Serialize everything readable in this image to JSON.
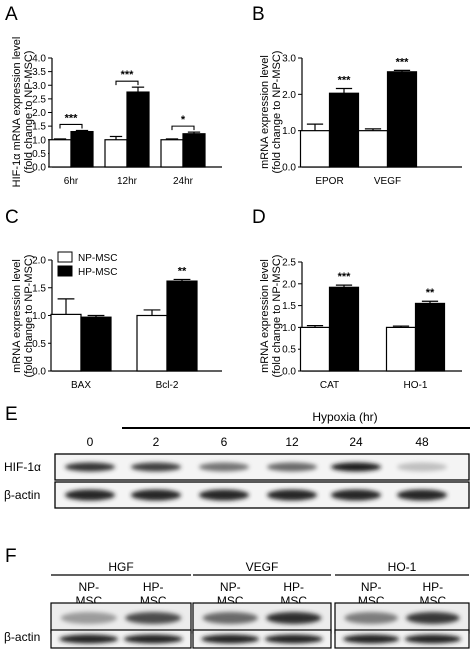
{
  "chart_data": [
    {
      "id": "A",
      "letter": "A",
      "type": "bar",
      "categories": [
        "6hr",
        "12hr",
        "24hr"
      ],
      "series": [
        {
          "name": "NP-MSC",
          "values": [
            1.0,
            1.0,
            1.0
          ],
          "errors": [
            0.03,
            0.12,
            0.03
          ],
          "color": "#ffffff"
        },
        {
          "name": "HP-MSC",
          "values": [
            1.3,
            2.75,
            1.22
          ],
          "errors": [
            0.04,
            0.18,
            0.06
          ],
          "color": "#000000"
        }
      ],
      "significance": [
        "***",
        "***",
        "*"
      ],
      "ylabel_lines": [
        "HIF-1α mRNA expression level",
        "(fold change to NP-MSC)"
      ],
      "ylim": [
        0,
        4.0
      ],
      "yticks": [
        "0.0",
        "0.5",
        "1.0",
        "1.5",
        "2.0",
        "2.5",
        "3.0",
        "3.5",
        "4.0"
      ],
      "brackets": true
    },
    {
      "id": "B",
      "letter": "B",
      "type": "bar",
      "categories": [
        "EPOR",
        "VEGF"
      ],
      "series": [
        {
          "name": "NP-MSC",
          "values": [
            1.0,
            1.0
          ],
          "errors": [
            0.18,
            0.05
          ],
          "color": "#ffffff"
        },
        {
          "name": "HP-MSC",
          "values": [
            2.03,
            2.62
          ],
          "errors": [
            0.13,
            0.04
          ],
          "color": "#000000"
        }
      ],
      "significance": [
        "***",
        "***"
      ],
      "ylabel_lines": [
        "mRNA expression level",
        "(fold change to NP-MSC)"
      ],
      "ylim": [
        0,
        3.0
      ],
      "yticks": [
        "0.0",
        "1.0",
        "2.0",
        "3.0"
      ],
      "brackets": false
    },
    {
      "id": "C",
      "letter": "C",
      "type": "bar",
      "categories": [
        "BAX",
        "Bcl-2"
      ],
      "series": [
        {
          "name": "NP-MSC",
          "values": [
            1.02,
            1.0
          ],
          "errors": [
            0.28,
            0.1
          ],
          "color": "#ffffff"
        },
        {
          "name": "HP-MSC",
          "values": [
            0.97,
            1.62
          ],
          "errors": [
            0.03,
            0.03
          ],
          "color": "#000000"
        }
      ],
      "significance": [
        "",
        "**"
      ],
      "ylabel_lines": [
        "mRNA expression level",
        "(fold change to NP-MSC)"
      ],
      "ylim": [
        0,
        2.0
      ],
      "yticks": [
        "0.0",
        "0.5",
        "1.0",
        "1.5",
        "2.0"
      ],
      "brackets": false,
      "legend": {
        "entries": [
          "NP-MSC",
          "HP-MSC"
        ],
        "placement": "top-left"
      }
    },
    {
      "id": "D",
      "letter": "D",
      "type": "bar",
      "categories": [
        "CAT",
        "HO-1"
      ],
      "series": [
        {
          "name": "NP-MSC",
          "values": [
            1.0,
            1.0
          ],
          "errors": [
            0.04,
            0.03
          ],
          "color": "#ffffff"
        },
        {
          "name": "HP-MSC",
          "values": [
            1.92,
            1.55
          ],
          "errors": [
            0.05,
            0.05
          ],
          "color": "#000000"
        }
      ],
      "significance": [
        "***",
        "**"
      ],
      "ylabel_lines": [
        "mRNA expression level",
        "(fold change to NP-MSC)"
      ],
      "ylim": [
        0,
        2.5
      ],
      "yticks": [
        "0.0",
        "0.5",
        "1.0",
        "1.5",
        "2.0",
        "2.5"
      ],
      "brackets": false
    }
  ],
  "panel_e": {
    "letter": "E",
    "condition_label": "Hypoxia (hr)",
    "time_points": [
      "0",
      "2",
      "6",
      "12",
      "24",
      "48"
    ],
    "rows": [
      {
        "name": "HIF-1α",
        "intensity": [
          0.85,
          0.8,
          0.55,
          0.6,
          0.95,
          0.2
        ]
      },
      {
        "name": "β-actin",
        "intensity": [
          0.92,
          0.92,
          0.92,
          0.92,
          0.92,
          0.92
        ]
      }
    ]
  },
  "panel_f": {
    "letter": "F",
    "groups": [
      {
        "name": "HGF",
        "lanes": [
          "NP-\nMSC",
          "HP-\nMSC"
        ],
        "intensity": [
          0.35,
          0.75
        ]
      },
      {
        "name": "VEGF",
        "lanes": [
          "NP-\nMSC",
          "HP-\nMSC"
        ],
        "intensity": [
          0.6,
          0.9
        ]
      },
      {
        "name": "HO-1",
        "lanes": [
          "NP-\nMSC",
          "HP-\nMSC"
        ],
        "intensity": [
          0.5,
          0.85
        ]
      }
    ],
    "loading_label": "β-actin"
  }
}
